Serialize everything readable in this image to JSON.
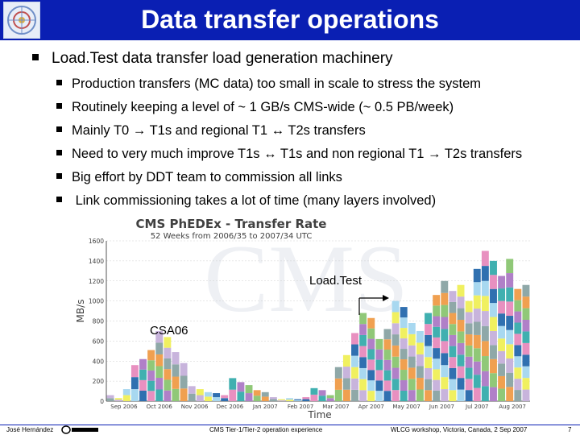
{
  "slide": {
    "title": "Data transfer operations",
    "main_bullet": "Load.Test data transfer load generation machinery",
    "sub_bullets": [
      "Production transfers (MC data) too small in scale to stress the system",
      "Routinely keeping a level of ~ 1 GB/s CMS-wide (~ 0.5 PB/week)",
      "Mainly T0 → T1s and regional T1 ↔ T2s transfers",
      "Need to very much improve T1s ↔ T1s and non regional T1 → T2s transfers",
      "Big effort by DDT team to commission all links",
      " Link commissioning takes a lot of time (many layers involved)"
    ]
  },
  "chart_data": {
    "type": "bar",
    "stacked": true,
    "title": "CMS PhEDEx - Transfer Rate",
    "subtitle": "52 Weeks from 2006/35 to 2007/34 UTC",
    "xlabel": "Time",
    "ylabel": "MB/s",
    "ylim": [
      0,
      1600
    ],
    "yticks": [
      0,
      200,
      400,
      600,
      800,
      1000,
      1200,
      1400,
      1600
    ],
    "ytick_labels": [
      "0",
      "200",
      "400",
      "600",
      "800",
      "1000",
      "1200",
      "1400",
      "1600"
    ],
    "xtick_labels": [
      "Sep 2006",
      "Oct 2006",
      "Nov 2006",
      "Dec 2006",
      "Jan 2007",
      "Feb 2007",
      "Mar 2007",
      "Apr 2007",
      "May 2007",
      "Jun 2007",
      "Jul 2007",
      "Aug 2007"
    ],
    "weekly_totals": [
      60,
      30,
      120,
      360,
      420,
      510,
      700,
      640,
      490,
      380,
      150,
      120,
      90,
      80,
      60,
      230,
      190,
      160,
      110,
      90,
      40,
      20,
      30,
      20,
      40,
      130,
      110,
      60,
      340,
      460,
      680,
      880,
      830,
      620,
      720,
      1000,
      940,
      780,
      700,
      880,
      1060,
      1200,
      1100,
      1160,
      1000,
      1320,
      1500,
      1400,
      1250,
      1420,
      1120,
      1160
    ],
    "stack_colors": [
      "#8fa8a8",
      "#c8b4dc",
      "#f0f060",
      "#a8d8f0",
      "#3070b0",
      "#e890c0",
      "#40b0b0",
      "#b080c8",
      "#90c878",
      "#f0a050"
    ],
    "annotations": [
      {
        "label": "CSA06"
      },
      {
        "label": "Load.Test"
      }
    ],
    "watermark": "CMS"
  },
  "footer": {
    "author": "José Hernández",
    "talk": "CMS Tier-1/Tier-2 operation experience",
    "event": "WLCG workshop, Victoria, Canada, 2 Sep 2007",
    "page": "7",
    "brand_icon": "ciemat-logo-icon"
  },
  "colors": {
    "header_bg": "#0a1fb3",
    "header_text": "#ffffff",
    "chart_title": "#404040",
    "axis": "#555555",
    "grid": "#cfcfcf"
  }
}
